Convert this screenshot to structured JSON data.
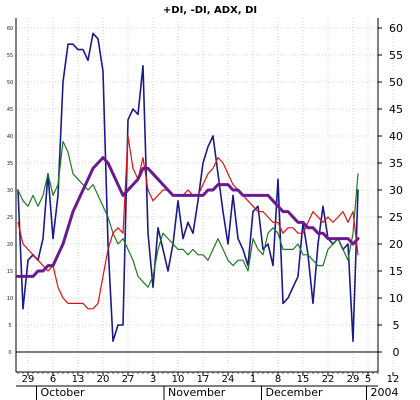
{
  "chart_data": {
    "type": "line",
    "title": "+DI, -DI, ADX, DI",
    "ylim": [
      0,
      62
    ],
    "grid": true,
    "y_ticks_right": [
      0,
      5,
      10,
      15,
      20,
      25,
      30,
      35,
      40,
      45,
      50,
      55,
      60
    ],
    "y_ticks_left": [
      0,
      5,
      10,
      15,
      20,
      25,
      30,
      35,
      40,
      45,
      50,
      55,
      60
    ],
    "x_tick_labels": [
      {
        "label": "29",
        "idx": 2
      },
      {
        "label": "6",
        "idx": 7
      },
      {
        "label": "13",
        "idx": 12
      },
      {
        "label": "20",
        "idx": 17
      },
      {
        "label": "27",
        "idx": 22
      },
      {
        "label": "3",
        "idx": 27
      },
      {
        "label": "10",
        "idx": 32
      },
      {
        "label": "17",
        "idx": 37
      },
      {
        "label": "24",
        "idx": 42
      },
      {
        "label": "1",
        "idx": 47
      },
      {
        "label": "8",
        "idx": 52
      },
      {
        "label": "15",
        "idx": 57
      },
      {
        "label": "22",
        "idx": 62
      },
      {
        "label": "29",
        "idx": 67
      },
      {
        "label": "5",
        "idx": 70
      },
      {
        "label": "12",
        "idx": 75
      }
    ],
    "month_labels": [
      {
        "label": "October",
        "idx": 4.5
      },
      {
        "label": "November",
        "idx": 30
      },
      {
        "label": "December",
        "idx": 49.5
      },
      {
        "label": "2004",
        "idx": 70.5
      }
    ],
    "series": [
      {
        "color": "#1a1a8c",
        "width": 1.6,
        "values": [
          30,
          8,
          17,
          18,
          17,
          21,
          33,
          21,
          29,
          50,
          57,
          57,
          56,
          56,
          54,
          59,
          58,
          52,
          20,
          2,
          5,
          5,
          43,
          45,
          44,
          53,
          22,
          12,
          23,
          19,
          15,
          20,
          28,
          21,
          24,
          22,
          28,
          35,
          38,
          40,
          33,
          26,
          20,
          29,
          21,
          19,
          16,
          26,
          27,
          19,
          20,
          16,
          32,
          9,
          10,
          12,
          14,
          24,
          18,
          9,
          20,
          27,
          21,
          20,
          21,
          19,
          20,
          2,
          30
        ]
      },
      {
        "color": "#1e7a1e",
        "width": 1.2,
        "values": [
          30,
          28,
          27,
          29,
          27,
          29,
          33,
          29,
          31,
          39,
          37,
          33,
          32,
          31,
          30,
          31,
          29,
          27,
          25,
          22,
          20,
          21,
          19,
          17,
          14,
          13,
          12,
          14,
          19,
          22,
          21,
          20,
          19,
          19,
          18,
          19,
          18,
          18,
          17,
          19,
          21,
          19,
          17,
          16,
          17,
          17,
          15,
          21,
          19,
          18,
          22,
          23,
          22,
          19,
          19,
          19,
          20,
          18,
          18,
          17,
          16,
          16,
          19,
          20,
          21,
          19,
          17,
          22,
          33
        ]
      },
      {
        "color": "#e01010",
        "width": 1.2,
        "values": [
          24,
          20,
          19,
          18,
          17,
          16,
          15,
          16,
          12,
          10,
          9,
          9,
          9,
          9,
          8,
          8,
          9,
          14,
          19,
          22,
          23,
          22,
          40,
          34,
          32,
          36,
          30,
          28,
          29,
          30,
          30,
          29,
          29,
          29,
          30,
          29,
          29,
          31,
          33,
          34,
          36,
          35,
          33,
          31,
          30,
          29,
          28,
          27,
          26,
          26,
          25,
          24,
          24,
          22,
          23,
          23,
          22,
          22,
          24,
          26,
          25,
          24,
          25,
          24,
          25,
          26,
          24,
          26,
          18
        ]
      },
      {
        "color": "#6a1a90",
        "width": 3,
        "values": [
          14,
          14,
          14,
          14,
          15,
          15,
          16,
          16,
          18,
          20,
          23,
          26,
          28,
          30,
          32,
          34,
          35,
          36,
          35,
          33,
          31,
          29,
          30,
          31,
          32,
          34,
          34,
          33,
          32,
          31,
          30,
          29,
          29,
          29,
          29,
          29,
          29,
          29,
          30,
          30,
          31,
          31,
          31,
          30,
          30,
          29,
          29,
          29,
          29,
          29,
          29,
          28,
          27,
          26,
          26,
          25,
          24,
          24,
          23,
          23,
          22,
          22,
          21,
          21,
          21,
          21,
          21,
          20,
          21
        ]
      }
    ]
  }
}
